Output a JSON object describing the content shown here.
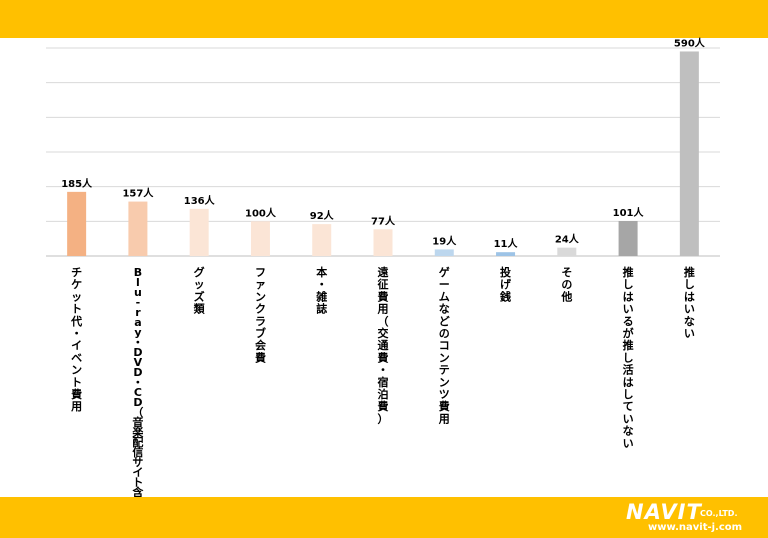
{
  "theme": {
    "band_color": "#FFC000",
    "grid_color": "#D9D9D9",
    "axis_color": "#BFBFBF",
    "text_color": "#000000"
  },
  "brand": {
    "logo_text": "NAVIT",
    "company_suffix": "CO.,LTD.",
    "url": "www.navit-j.com"
  },
  "chart_data": {
    "type": "bar",
    "title": "",
    "xlabel": "",
    "ylabel": "",
    "ylim": [
      0,
      600
    ],
    "grid": true,
    "grid_step": 100,
    "categories": [
      "チケット代・イベント費用",
      "Blu-ray・DVD・CD（音楽配信サイト含む）",
      "グッズ類",
      "ファンクラブ会費",
      "本・雑誌",
      "遠征費用（交通費・宿泊費）",
      "ゲームなどのコンテンツ費用",
      "投げ銭",
      "その他",
      "推しはいるが推し活はしていない",
      "推しはいない"
    ],
    "values": [
      185,
      157,
      136,
      100,
      92,
      77,
      19,
      11,
      24,
      101,
      590
    ],
    "value_labels": [
      "185人",
      "157人",
      "136人",
      "100人",
      "92人",
      "77人",
      "19人",
      "11人",
      "24人",
      "101人",
      "590人"
    ],
    "colors": [
      "#F4B183",
      "#F8CBAD",
      "#FBE5D6",
      "#FBE5D6",
      "#FBE5D6",
      "#FBE5D6",
      "#BDD7EE",
      "#9DC3E6",
      "#D9D9D9",
      "#A6A6A6",
      "#BFBFBF"
    ]
  }
}
